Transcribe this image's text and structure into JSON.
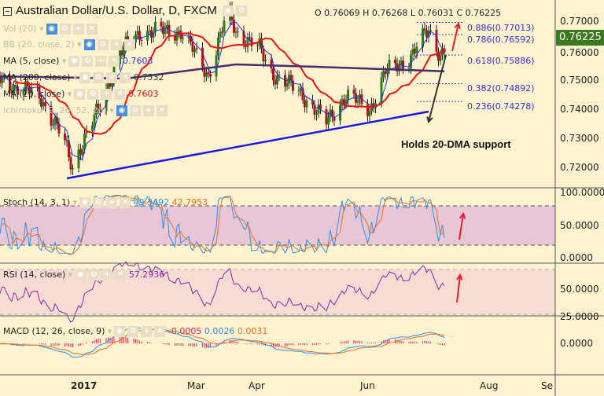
{
  "header": {
    "title": "Australian Dollar/U.S. Dollar, D, FXCM",
    "ohlc": "O 0.76069 H 0.76268 L 0.76031 C 0.76225"
  },
  "indicators": {
    "vol": "Vol (20)",
    "bb": "BB (20, close, 2)",
    "ma5": "MA (5, close)",
    "ma5_val": "0.7603",
    "ma200": "MA (200, close)",
    "ma200_val": "0.7532",
    "ma20": "MA (20, close)",
    "ma20_val": "0.7603",
    "ichimoku": "Ichimoku (9, 26, 52, 26)"
  },
  "stoch": {
    "label": "Stoch (14, 3, 1)",
    "k": "49.3492",
    "d": "42.7953",
    "axis": [
      "100.0000",
      "50.0000",
      "0.0000"
    ]
  },
  "rsi": {
    "label": "RSI (14, close)",
    "value": "57.2936",
    "axis": [
      "50.0000",
      "25.0000"
    ]
  },
  "macd": {
    "label": "MACD (12, 26, close, 9)",
    "hist": "-0.0005",
    "macd": "0.0026",
    "signal": "0.0031",
    "axis": [
      "0.0000"
    ]
  },
  "price_axis": [
    "0.77000",
    "0.76000",
    "0.75000",
    "0.74000",
    "0.73000",
    "0.72000"
  ],
  "last_price": "0.76225",
  "fib_levels": [
    {
      "label": "0.886(0.77013)",
      "price": 0.77013
    },
    {
      "label": "0.786(0.76592)",
      "price": 0.76592
    },
    {
      "label": "0.618(0.75886)",
      "price": 0.75886
    },
    {
      "label": "0.382(0.74892)",
      "price": 0.74892
    },
    {
      "label": "0.236(0.74278)",
      "price": 0.74278
    }
  ],
  "annotation": "Holds 20-DMA support",
  "x_axis": [
    "2017",
    "Mar",
    "Apr",
    "Jun",
    "Aug",
    "Se"
  ],
  "colors": {
    "up": "#2e7d1a",
    "down": "#b01515",
    "ma5": "#2233dd",
    "ma20": "#ee1111",
    "ma200": "#4b2a6e",
    "trend": "#1a1ae0",
    "stochK": "#2f8fe8",
    "stochD": "#f07020",
    "rsi": "#8a2aa8"
  },
  "chart_data": {
    "type": "candlestick",
    "symbol": "AUD/USD daily",
    "keypoints": [
      {
        "day": -40,
        "close": 0.75
      },
      {
        "day": -20,
        "close": 0.745
      },
      {
        "day": -40,
        "close": 0.75
      },
      {
        "day": -16,
        "close": 0.74
      },
      {
        "day": -8,
        "close": 0.73
      },
      {
        "day": -3,
        "close": 0.7195
      },
      {
        "day": 0,
        "close": 0.726
      },
      {
        "day": 12,
        "close": 0.7425
      },
      {
        "day": 20,
        "close": 0.759
      },
      {
        "day": 32,
        "close": 0.767
      },
      {
        "day": 52,
        "close": 0.767
      },
      {
        "day": 66,
        "close": 0.752
      },
      {
        "day": 76,
        "close": 0.774
      },
      {
        "day": 80,
        "close": 0.767
      },
      {
        "day": 92,
        "close": 0.761
      },
      {
        "day": 98,
        "close": 0.753
      },
      {
        "day": 114,
        "close": 0.745
      },
      {
        "day": 126,
        "close": 0.7355
      },
      {
        "day": 136,
        "close": 0.745
      },
      {
        "day": 148,
        "close": 0.74
      },
      {
        "day": 156,
        "close": 0.753
      },
      {
        "day": 168,
        "close": 0.7575
      },
      {
        "day": 178,
        "close": 0.7675
      },
      {
        "day": 184,
        "close": 0.759
      },
      {
        "day": 187,
        "close": 0.76225
      }
    ],
    "ma200_keypoints": [
      {
        "day": -40,
        "close": 0.7515
      },
      {
        "day": 24,
        "close": 0.7507
      },
      {
        "day": 80,
        "close": 0.7556
      },
      {
        "day": 120,
        "close": 0.7548
      },
      {
        "day": 187,
        "close": 0.7532
      }
    ],
    "trendline": [
      {
        "day": -6,
        "price": 0.7162
      },
      {
        "day": 178,
        "price": 0.7393
      }
    ],
    "ylim": [
      0.7135,
      0.7775
    ]
  }
}
